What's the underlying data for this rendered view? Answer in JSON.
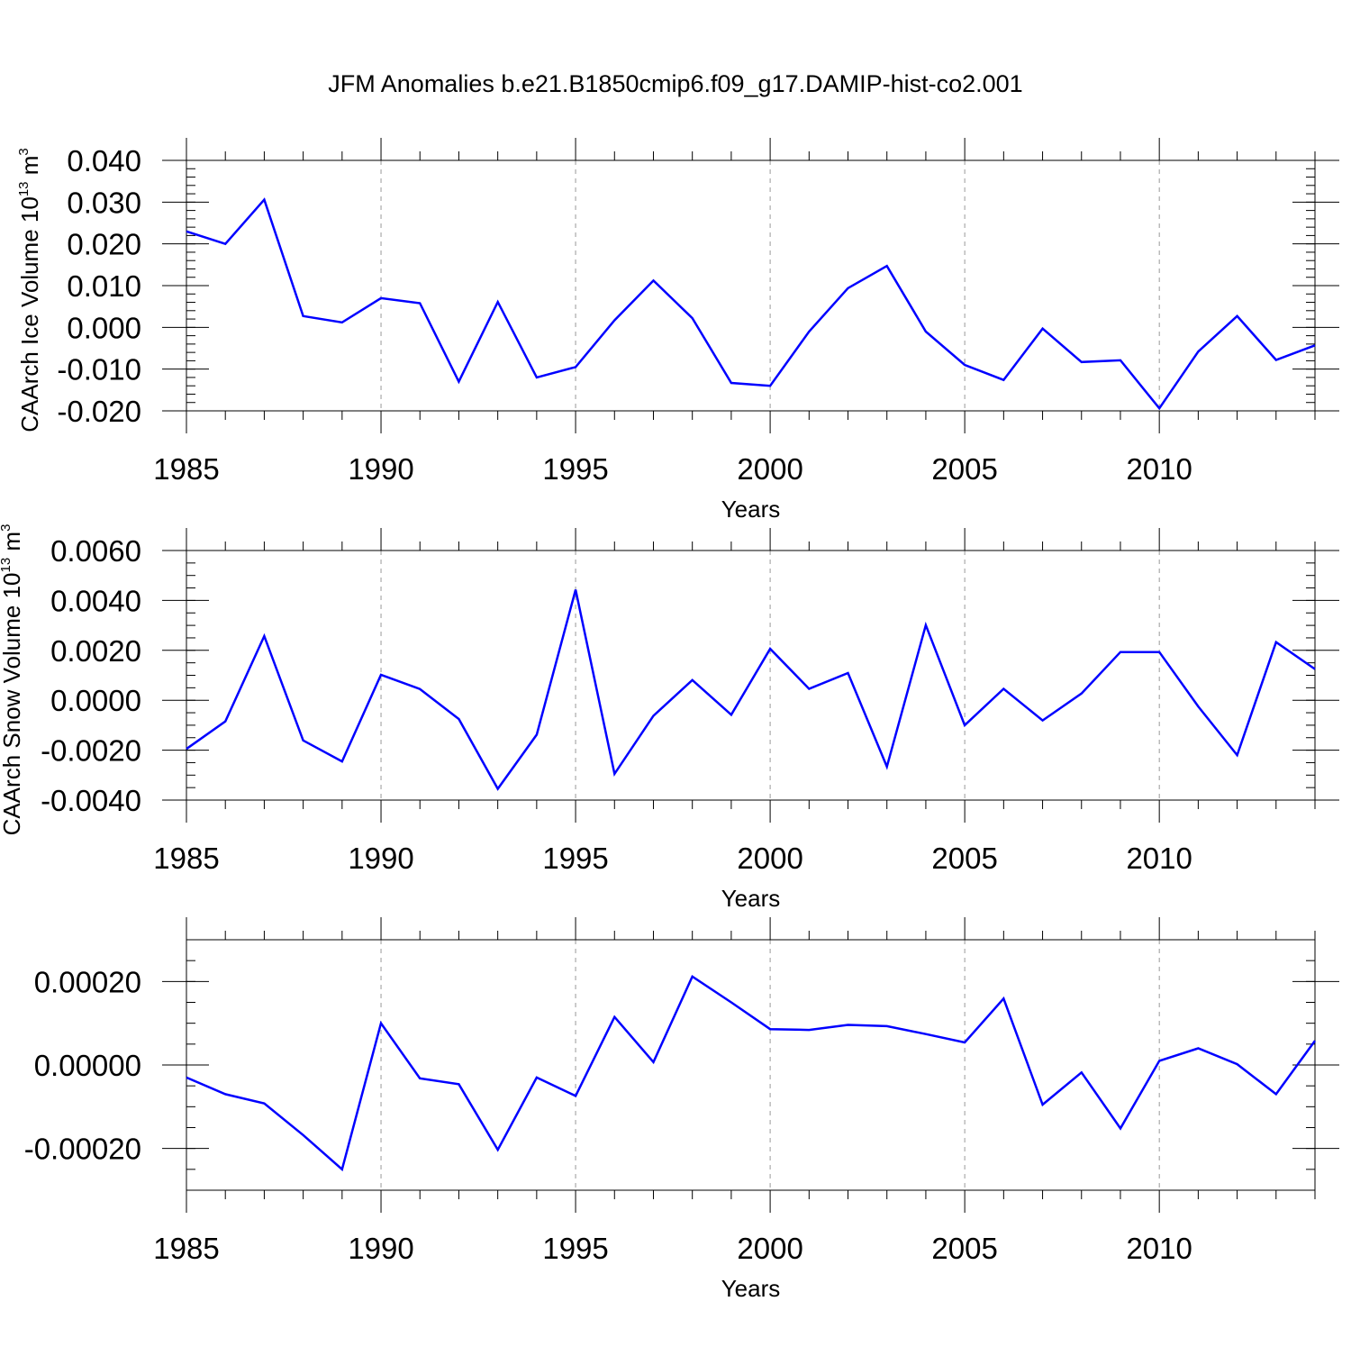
{
  "title": "JFM Anomalies b.e21.B1850cmip6.f09_g17.DAMIP-hist-co2.001",
  "colors": {
    "line": "#0000ff",
    "axis": "#000000",
    "gridline": "#999999"
  },
  "chart_data": [
    {
      "type": "line",
      "xlabel": "Years",
      "ylabel": "CAArch Ice Volume 10",
      "ylabel_exp": "13",
      "ylabel_unit": " m",
      "ylabel_unit_exp": "3",
      "xlim": [
        1985,
        2014
      ],
      "ylim": [
        -0.02,
        0.04
      ],
      "xticks": [
        1985,
        1990,
        1995,
        2000,
        2005,
        2010
      ],
      "xtick_labels": [
        "1985",
        "1990",
        "1995",
        "2000",
        "2005",
        "2010"
      ],
      "yticks": [
        -0.02,
        -0.01,
        0.0,
        0.01,
        0.02,
        0.03,
        0.04
      ],
      "ytick_labels": [
        "-0.020",
        "-0.010",
        "0.000",
        "0.010",
        "0.020",
        "0.030",
        "0.040"
      ],
      "x": [
        1985,
        1986,
        1987,
        1988,
        1989,
        1990,
        1991,
        1992,
        1993,
        1994,
        1995,
        1996,
        1997,
        1998,
        1999,
        2000,
        2001,
        2002,
        2003,
        2004,
        2005,
        2006,
        2007,
        2008,
        2009,
        2010,
        2011,
        2012,
        2013,
        2014
      ],
      "values": [
        0.023,
        0.02,
        0.0306,
        0.0027,
        0.0012,
        0.007,
        0.0058,
        -0.013,
        0.0061,
        -0.012,
        -0.0095,
        0.0017,
        0.0112,
        0.0022,
        -0.0133,
        -0.014,
        -0.001,
        0.0094,
        0.0147,
        -0.001,
        -0.009,
        -0.0126,
        -0.0003,
        -0.0083,
        -0.0079,
        -0.0194,
        -0.0058,
        0.0027,
        -0.0078,
        -0.0043
      ],
      "vgrid": [
        1990,
        1995,
        2000,
        2005,
        2010
      ]
    },
    {
      "type": "line",
      "xlabel": "Years",
      "ylabel": "CAArch Snow Volume 10",
      "ylabel_exp": "13",
      "ylabel_unit": " m",
      "ylabel_unit_exp": "3",
      "xlim": [
        1985,
        2014
      ],
      "ylim": [
        -0.004,
        0.006
      ],
      "xticks": [
        1985,
        1990,
        1995,
        2000,
        2005,
        2010
      ],
      "xtick_labels": [
        "1985",
        "1990",
        "1995",
        "2000",
        "2005",
        "2010"
      ],
      "yticks": [
        -0.004,
        -0.002,
        0.0,
        0.002,
        0.004,
        0.006
      ],
      "ytick_labels": [
        "-0.0040",
        "-0.0020",
        "0.0000",
        "0.0020",
        "0.0040",
        "0.0060"
      ],
      "x": [
        1985,
        1986,
        1987,
        1988,
        1989,
        1990,
        1991,
        1992,
        1993,
        1994,
        1995,
        1996,
        1997,
        1998,
        1999,
        2000,
        2001,
        2002,
        2003,
        2004,
        2005,
        2006,
        2007,
        2008,
        2009,
        2010,
        2011,
        2012,
        2013,
        2014
      ],
      "values": [
        -0.00195,
        -0.00085,
        0.00257,
        -0.00161,
        -0.00245,
        0.00102,
        0.00045,
        -0.00075,
        -0.00355,
        -0.00138,
        0.00443,
        -0.00295,
        -0.00062,
        0.00081,
        -0.00058,
        0.00206,
        0.00046,
        0.00109,
        -0.00266,
        0.00301,
        -0.001,
        0.00046,
        -0.00081,
        0.00027,
        0.00193,
        0.00193,
        -0.00025,
        -0.0022,
        0.00233,
        0.00125
      ],
      "vgrid": [
        1990,
        1995,
        2000,
        2005,
        2010
      ]
    },
    {
      "type": "line",
      "xlabel": "Years",
      "ylabel": "",
      "xlim": [
        1985,
        2014
      ],
      "ylim": [
        -0.0003,
        0.0003
      ],
      "xticks": [
        1985,
        1990,
        1995,
        2000,
        2005,
        2010
      ],
      "xtick_labels": [
        "1985",
        "1990",
        "1995",
        "2000",
        "2005",
        "2010"
      ],
      "yticks": [
        -0.0002,
        0.0,
        0.0002
      ],
      "ytick_labels": [
        "-0.00020",
        "0.00000",
        "0.00020"
      ],
      "x": [
        1985,
        1986,
        1987,
        1988,
        1989,
        1990,
        1991,
        1992,
        1993,
        1994,
        1995,
        1996,
        1997,
        1998,
        1999,
        2000,
        2001,
        2002,
        2003,
        2004,
        2005,
        2006,
        2007,
        2008,
        2009,
        2010,
        2011,
        2012,
        2013,
        2014
      ],
      "values": [
        -3e-05,
        -7e-05,
        -9.2e-05,
        -0.000168,
        -0.00025,
        0.0001,
        -3.2e-05,
        -4.6e-05,
        -0.000203,
        -3e-05,
        -7.4e-05,
        0.000115,
        7e-06,
        0.000212,
        0.00015,
        8.6e-05,
        8.4e-05,
        9.6e-05,
        9.3e-05,
        7.4e-05,
        5.4e-05,
        0.000159,
        -9.5e-05,
        -1.8e-05,
        -0.000152,
        1e-05,
        4e-05,
        2e-06,
        -7e-05,
        5.8e-05
      ],
      "vgrid": [
        1990,
        1995,
        2000,
        2005,
        2010
      ]
    }
  ]
}
